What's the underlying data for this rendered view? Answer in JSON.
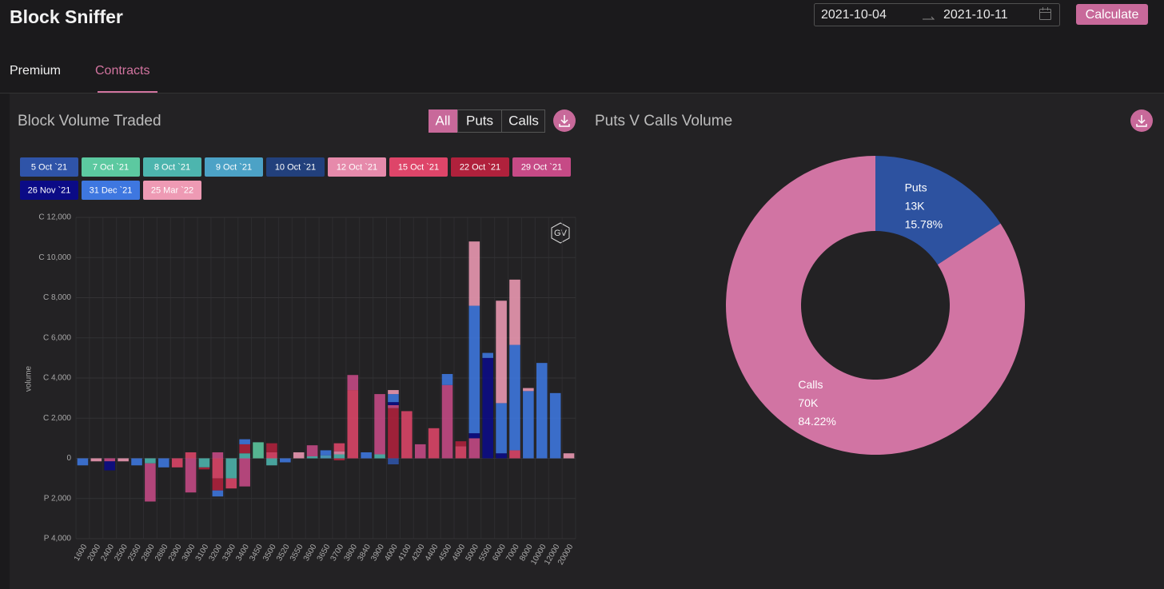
{
  "app": {
    "title": "Block Sniffer",
    "date_from": "2021-10-04",
    "date_to": "2021-10-11",
    "action": "Calculate",
    "tabs": [
      "Premium",
      "Contracts"
    ]
  },
  "chart_data": [
    {
      "type": "bar",
      "title": "Block Volume Traded",
      "filters": [
        "All",
        "Puts",
        "Calls"
      ],
      "watermark": "GV",
      "y_label": "volume",
      "stacked": true,
      "grid": true,
      "categories": [
        "1600",
        "2000",
        "2400",
        "2500",
        "2560",
        "2800",
        "2880",
        "2900",
        "3000",
        "3100",
        "3200",
        "3300",
        "3400",
        "3450",
        "3500",
        "3520",
        "3550",
        "3600",
        "3650",
        "3700",
        "3800",
        "3840",
        "3900",
        "4000",
        "4100",
        "4200",
        "4400",
        "4500",
        "4600",
        "5000",
        "5500",
        "6000",
        "7000",
        "8000",
        "10000",
        "12000",
        "20000"
      ],
      "ylim": [
        -4000,
        12000
      ],
      "yticks": [
        {
          "value": 12000,
          "label": "C 12,000"
        },
        {
          "value": 10000,
          "label": "C 10,000"
        },
        {
          "value": 8000,
          "label": "C 8,000"
        },
        {
          "value": 6000,
          "label": "C 6,000"
        },
        {
          "value": 4000,
          "label": "C 4,000"
        },
        {
          "value": 2000,
          "label": "C 2,000"
        },
        0,
        {
          "value": -2000,
          "label": "P 2,000"
        },
        {
          "value": -4000,
          "label": "P 4,000"
        }
      ],
      "series": [
        {
          "name": "5 Oct `21",
          "color": "#2f54a8",
          "values": [
            0,
            0,
            0,
            0,
            0,
            0,
            0,
            0,
            0,
            0,
            0,
            0,
            0,
            0,
            0,
            0,
            0,
            0,
            0,
            0,
            0,
            0,
            0,
            -300,
            0,
            0,
            0,
            0,
            0,
            0,
            0,
            0,
            0,
            0,
            0,
            0,
            0
          ]
        },
        {
          "name": "7 Oct `21",
          "color": "#5cc9a0",
          "values": [
            0,
            0,
            0,
            0,
            0,
            0,
            0,
            0,
            0,
            0,
            0,
            0,
            0,
            800,
            0,
            0,
            0,
            0,
            0,
            0,
            0,
            0,
            0,
            0,
            0,
            0,
            0,
            0,
            0,
            0,
            0,
            0,
            0,
            0,
            0,
            0,
            0
          ]
        },
        {
          "name": "8 Oct `21",
          "color": "#4db5ae",
          "values": [
            0,
            0,
            0,
            0,
            0,
            -250,
            0,
            0,
            0,
            -450,
            0,
            -1000,
            250,
            0,
            -350,
            0,
            0,
            100,
            0,
            200,
            0,
            0,
            200,
            0,
            0,
            0,
            0,
            0,
            0,
            0,
            0,
            0,
            0,
            0,
            0,
            0,
            0
          ]
        },
        {
          "name": "9 Oct `21",
          "color": "#4ca2c6",
          "values": [
            0,
            0,
            0,
            0,
            0,
            0,
            0,
            0,
            0,
            0,
            0,
            0,
            0,
            0,
            0,
            0,
            0,
            0,
            150,
            0,
            0,
            0,
            0,
            0,
            0,
            0,
            0,
            0,
            0,
            0,
            0,
            0,
            0,
            0,
            0,
            0,
            0
          ]
        },
        {
          "name": "10 Oct `21",
          "color": "#22407c",
          "values": [
            0,
            0,
            0,
            0,
            0,
            0,
            0,
            0,
            0,
            0,
            0,
            0,
            0,
            0,
            0,
            0,
            0,
            0,
            0,
            0,
            0,
            0,
            0,
            0,
            0,
            0,
            0,
            0,
            0,
            0,
            0,
            0,
            0,
            0,
            0,
            0,
            0
          ]
        },
        {
          "name": "12 Oct `21",
          "color": "#e68aab",
          "values": [
            0,
            0,
            0,
            0,
            0,
            0,
            0,
            0,
            0,
            0,
            0,
            0,
            0,
            0,
            0,
            0,
            0,
            0,
            0,
            150,
            0,
            0,
            0,
            0,
            0,
            0,
            0,
            0,
            0,
            0,
            0,
            0,
            0,
            0,
            0,
            0,
            0
          ]
        },
        {
          "name": "15 Oct `21",
          "color": "#de4569",
          "values": [
            0,
            0,
            0,
            0,
            0,
            0,
            0,
            -450,
            300,
            0,
            -1000,
            -500,
            0,
            0,
            300,
            0,
            0,
            0,
            0,
            400,
            3400,
            0,
            0,
            0,
            2350,
            0,
            1500,
            0,
            600,
            0,
            0,
            0,
            400,
            0,
            0,
            0,
            0
          ]
        },
        {
          "name": "22 Oct `21",
          "color": "#b0213c",
          "values": [
            0,
            0,
            0,
            0,
            0,
            0,
            0,
            0,
            0,
            -100,
            -600,
            0,
            450,
            0,
            450,
            0,
            0,
            0,
            0,
            -100,
            0,
            0,
            0,
            2500,
            0,
            0,
            0,
            0,
            250,
            0,
            0,
            0,
            0,
            0,
            0,
            0,
            0
          ]
        },
        {
          "name": "29 Oct `21",
          "color": "#c64a86",
          "values": [
            0,
            0,
            -150,
            0,
            0,
            -1900,
            0,
            0,
            -1700,
            0,
            300,
            0,
            -1400,
            0,
            0,
            0,
            0,
            550,
            0,
            0,
            750,
            0,
            3000,
            150,
            0,
            700,
            0,
            3650,
            0,
            1000,
            0,
            0,
            0,
            0,
            0,
            0,
            0
          ]
        },
        {
          "name": "26 Nov `21",
          "color": "#0b0b86",
          "values": [
            0,
            0,
            -450,
            0,
            0,
            0,
            0,
            0,
            0,
            0,
            0,
            0,
            0,
            0,
            0,
            0,
            0,
            0,
            0,
            0,
            0,
            0,
            0,
            150,
            0,
            0,
            0,
            0,
            0,
            250,
            5000,
            250,
            0,
            0,
            0,
            0,
            0
          ]
        },
        {
          "name": "31 Dec `21",
          "color": "#3e77e0",
          "values": [
            -350,
            0,
            0,
            0,
            -350,
            0,
            -450,
            0,
            0,
            0,
            -300,
            0,
            250,
            0,
            0,
            -200,
            0,
            0,
            250,
            0,
            0,
            300,
            0,
            400,
            0,
            0,
            0,
            550,
            0,
            6350,
            250,
            2500,
            5250,
            3350,
            4750,
            3250,
            0
          ]
        },
        {
          "name": "25 Mar `22",
          "color": "#ee9ab4",
          "values": [
            0,
            -150,
            0,
            -150,
            0,
            0,
            0,
            0,
            0,
            0,
            0,
            0,
            0,
            0,
            0,
            0,
            300,
            0,
            0,
            0,
            0,
            0,
            0,
            200,
            0,
            0,
            0,
            0,
            0,
            3200,
            0,
            5100,
            3250,
            150,
            0,
            0,
            250
          ]
        }
      ]
    },
    {
      "type": "pie",
      "title": "Puts V Calls Volume",
      "categories": [
        "Puts",
        "Calls"
      ],
      "values": [
        15.78,
        84.22
      ],
      "value_labels": [
        "15.78%",
        "84.22%"
      ],
      "volume_labels": [
        "13K",
        "70K"
      ],
      "colors": [
        "#2d52a0",
        "#d174a3"
      ]
    }
  ]
}
